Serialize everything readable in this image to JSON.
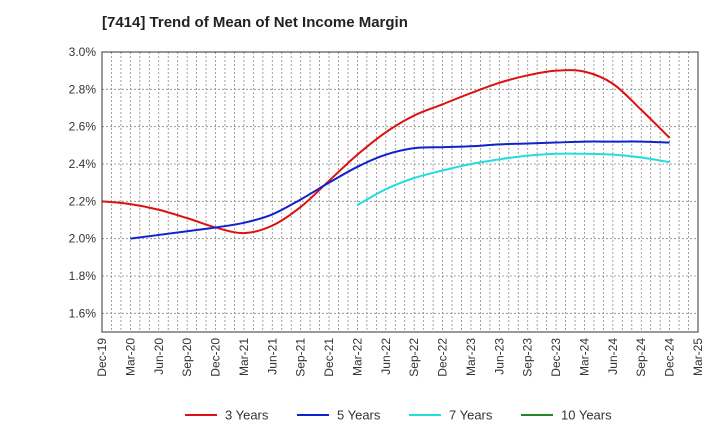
{
  "chart_data": {
    "type": "line",
    "title": "[7414]  Trend of Mean of Net Income Margin",
    "xlabel": "",
    "ylabel": "",
    "x": [
      "Dec-19",
      "Mar-20",
      "Jun-20",
      "Sep-20",
      "Dec-20",
      "Mar-21",
      "Jun-21",
      "Sep-21",
      "Dec-21",
      "Mar-22",
      "Jun-22",
      "Sep-22",
      "Dec-22",
      "Mar-23",
      "Jun-23",
      "Sep-23",
      "Dec-23",
      "Mar-24",
      "Jun-24",
      "Sep-24",
      "Dec-24",
      "Mar-25"
    ],
    "ylim": [
      1.5,
      3.0
    ],
    "yticks": [
      "1.6%",
      "1.8%",
      "2.0%",
      "2.2%",
      "2.4%",
      "2.6%",
      "2.8%",
      "3.0%"
    ],
    "grid": true,
    "legend_position": "bottom",
    "series": [
      {
        "name": "3 Years",
        "color": "#dd1111",
        "values": [
          2.2,
          2.185,
          2.155,
          2.11,
          2.06,
          2.03,
          2.07,
          2.17,
          2.31,
          2.45,
          2.57,
          2.66,
          2.72,
          2.78,
          2.835,
          2.875,
          2.9,
          2.895,
          2.83,
          2.69,
          2.54,
          null
        ]
      },
      {
        "name": "5 Years",
        "color": "#1122cc",
        "values": [
          null,
          2.0,
          2.02,
          2.04,
          2.06,
          2.085,
          2.13,
          2.21,
          2.3,
          2.385,
          2.45,
          2.485,
          2.49,
          2.495,
          2.505,
          2.51,
          2.515,
          2.52,
          2.52,
          2.52,
          2.515,
          null
        ]
      },
      {
        "name": "7 Years",
        "color": "#22dddd",
        "values": [
          null,
          null,
          null,
          null,
          null,
          null,
          null,
          null,
          null,
          2.18,
          2.265,
          2.325,
          2.365,
          2.4,
          2.425,
          2.445,
          2.455,
          2.455,
          2.45,
          2.435,
          2.41,
          null
        ]
      },
      {
        "name": "10 Years",
        "color": "#228822",
        "values": [
          null,
          null,
          null,
          null,
          null,
          null,
          null,
          null,
          null,
          null,
          null,
          null,
          null,
          null,
          null,
          null,
          null,
          null,
          null,
          null,
          null,
          null
        ]
      }
    ]
  }
}
